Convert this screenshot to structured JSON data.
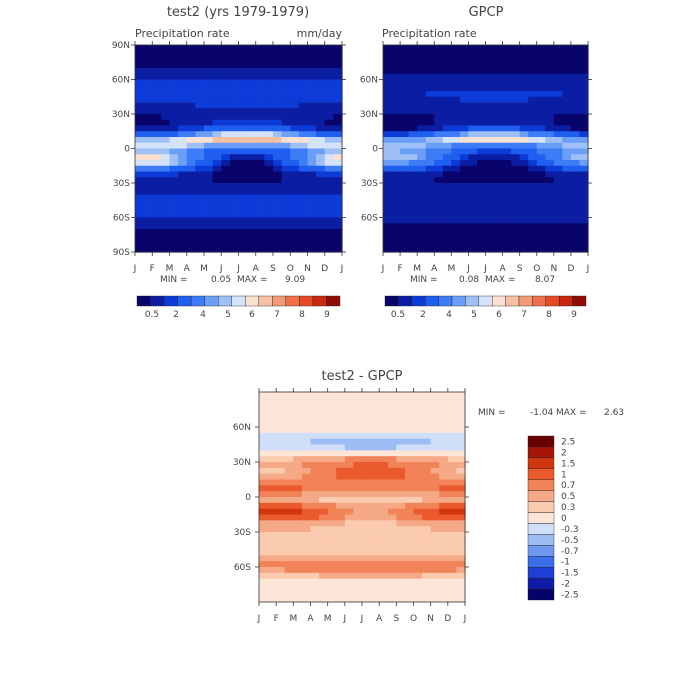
{
  "chart_data": [
    {
      "type": "heatmap",
      "title": "test2 (yrs 1979-1979)",
      "subtitle_left": "Precipitation rate",
      "subtitle_right": "mm/day",
      "x_ticks": [
        "J",
        "F",
        "M",
        "A",
        "M",
        "J",
        "J",
        "A",
        "S",
        "O",
        "N",
        "D",
        "J"
      ],
      "y_ticks": [
        "90N",
        "60N",
        "30N",
        "0",
        "30S",
        "60S",
        "90S"
      ],
      "stats": {
        "min_label": "MIN =",
        "min": "0.05",
        "max_label": "MAX =",
        "max": "9.09"
      },
      "colorbar_labels": [
        "0.5",
        "2",
        "4",
        "5",
        "6",
        "7",
        "8",
        "9"
      ],
      "band_latitudes": [
        90,
        75,
        60,
        45,
        30,
        20,
        15,
        10,
        5,
        0,
        -5,
        -10,
        -15,
        -20,
        -30,
        -45,
        -60,
        -75,
        -90
      ],
      "band_values_jan": [
        0.3,
        0.6,
        1.6,
        1.8,
        1.0,
        0.8,
        1.2,
        3.0,
        6.5,
        4.5,
        5.5,
        6.0,
        5.0,
        2.0,
        1.2,
        1.8,
        1.5,
        0.8,
        0.3
      ],
      "band_values_jul": [
        0.3,
        0.6,
        1.6,
        1.8,
        1.4,
        1.8,
        3.5,
        7.5,
        5.5,
        2.5,
        1.6,
        0.8,
        0.7,
        0.6,
        1.0,
        1.8,
        1.5,
        0.8,
        0.3
      ]
    },
    {
      "type": "heatmap",
      "title": "GPCP",
      "subtitle_left": "Precipitation rate",
      "x_ticks": [
        "J",
        "F",
        "M",
        "A",
        "M",
        "J",
        "J",
        "A",
        "S",
        "O",
        "N",
        "D",
        "J"
      ],
      "y_ticks": [
        "60N",
        "30N",
        "0",
        "30S",
        "60S"
      ],
      "stats": {
        "min_label": "MIN =",
        "min": "0.08",
        "max_label": "MAX =",
        "max": "8.07"
      },
      "colorbar_labels": [
        "0.5",
        "2",
        "4",
        "5",
        "6",
        "7",
        "8",
        "9"
      ],
      "band_latitudes": [
        90,
        75,
        60,
        45,
        30,
        20,
        15,
        10,
        5,
        0,
        -5,
        -10,
        -15,
        -20,
        -30,
        -45,
        -60,
        -75,
        -90
      ],
      "band_values_jan": [
        0.3,
        0.5,
        1.4,
        1.5,
        0.9,
        0.7,
        1.0,
        2.5,
        5.5,
        4.2,
        5.0,
        4.8,
        3.5,
        1.6,
        1.0,
        1.5,
        1.2,
        0.6,
        0.3
      ],
      "band_values_jul": [
        0.3,
        0.5,
        1.4,
        1.6,
        1.2,
        1.5,
        3.0,
        7.0,
        5.0,
        2.2,
        1.4,
        0.7,
        0.6,
        0.5,
        0.9,
        1.5,
        1.2,
        0.6,
        0.3
      ]
    },
    {
      "type": "heatmap",
      "title": "test2 - GPCP",
      "x_ticks": [
        "J",
        "F",
        "M",
        "A",
        "M",
        "J",
        "J",
        "A",
        "S",
        "O",
        "N",
        "D",
        "J"
      ],
      "y_ticks": [
        "60N",
        "30N",
        "0",
        "30S",
        "60S"
      ],
      "stats": {
        "min_label": "MIN =",
        "min": "-1.04",
        "max_label": "MAX =",
        "max": "2.63"
      },
      "colorbar_labels": [
        "2.5",
        "2",
        "1.5",
        "1",
        "0.7",
        "0.5",
        "0.3",
        "0",
        "-0.3",
        "-0.5",
        "-0.7",
        "-1",
        "-1.5",
        "-2",
        "-2.5"
      ],
      "band_latitudes": [
        90,
        75,
        60,
        45,
        30,
        20,
        15,
        10,
        5,
        0,
        -5,
        -10,
        -15,
        -20,
        -30,
        -45,
        -60,
        -75,
        -90
      ],
      "band_values_jan": [
        0.1,
        0.2,
        0.3,
        -0.3,
        0.6,
        0.4,
        0.8,
        1.2,
        1.0,
        0.5,
        0.8,
        1.5,
        2.0,
        0.7,
        0.5,
        0.4,
        0.8,
        0.1,
        0.0
      ],
      "band_values_jul": [
        0.1,
        0.2,
        0.3,
        -0.6,
        1.0,
        1.2,
        1.0,
        0.8,
        0.7,
        0.3,
        0.4,
        0.6,
        0.6,
        0.5,
        0.4,
        0.3,
        1.0,
        0.1,
        0.0
      ]
    }
  ],
  "colors": {
    "abs_scale": [
      "#08046b",
      "#0b1ea3",
      "#0c3bd8",
      "#1f5ff0",
      "#3d7cf4",
      "#6a9ef7",
      "#9fc0f6",
      "#d4e3f8",
      "#fbe1d1",
      "#f6c0a3",
      "#f49a77",
      "#ef714b",
      "#e54a25",
      "#c7280e",
      "#8f0d04"
    ],
    "diff_scale": [
      "#04036b",
      "#0f1aa8",
      "#1f3fd6",
      "#3b6ee9",
      "#6d98f0",
      "#9fbdf5",
      "#cfdff9",
      "#fde6d8",
      "#fbcbb0",
      "#f6a986",
      "#f28258",
      "#ea5a2d",
      "#d2360f",
      "#a41507",
      "#6b0202"
    ]
  }
}
